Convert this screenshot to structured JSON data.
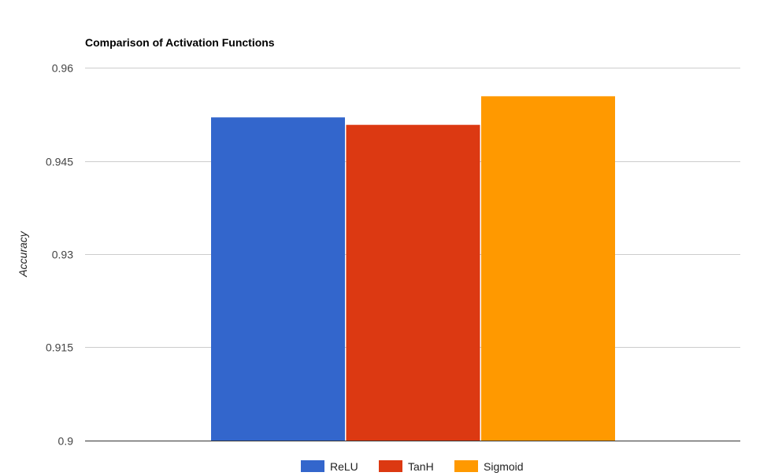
{
  "chart_data": {
    "type": "bar",
    "title": "Comparison of Activation Functions",
    "xlabel": "",
    "ylabel": "Accuracy",
    "ylim": [
      0.9,
      0.96
    ],
    "yticks": [
      "0.9",
      "0.915",
      "0.93",
      "0.945",
      "0.96"
    ],
    "yticks_values": [
      0.9,
      0.915,
      0.93,
      0.945,
      0.96
    ],
    "grid": true,
    "legend_position": "bottom",
    "series": [
      {
        "name": "ReLU",
        "value": 0.952,
        "color": "#3366cc"
      },
      {
        "name": "TanH",
        "value": 0.9508,
        "color": "#dc3912"
      },
      {
        "name": "Sigmoid",
        "value": 0.9554,
        "color": "#ff9900"
      }
    ]
  }
}
